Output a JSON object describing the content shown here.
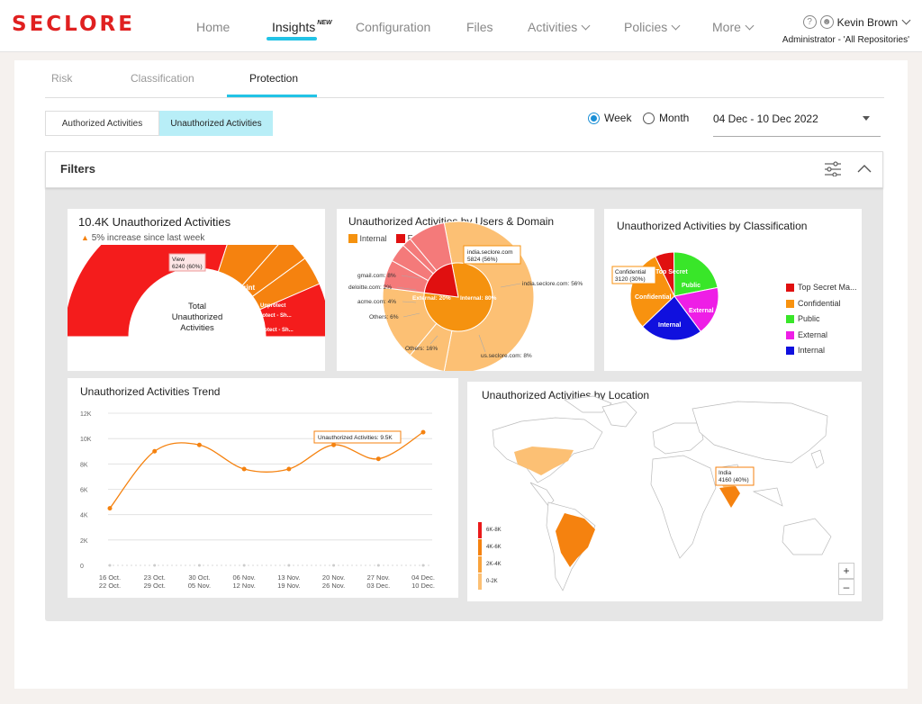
{
  "brand": {
    "logo": "SECLORE"
  },
  "nav": {
    "home": "Home",
    "insights": "Insights",
    "insights_badge": "NEW",
    "configuration": "Configuration",
    "files": "Files",
    "activities": "Activities",
    "policies": "Policies",
    "more": "More"
  },
  "user": {
    "help": "?",
    "name": "Kevin Brown",
    "role": "Administrator - 'All Repositories'"
  },
  "subtabs": {
    "risk": "Risk",
    "classification": "Classification",
    "protection": "Protection"
  },
  "activity_toggle": {
    "authorized": "Authorized Activities",
    "unauthorized": "Unauthorized Activities"
  },
  "period": {
    "week": "Week",
    "month": "Month",
    "selected": "Week",
    "date_range": "04 Dec - 10 Dec 2022"
  },
  "filters": {
    "label": "Filters"
  },
  "colors": {
    "accent": "#22c3e6",
    "red": "#f41c1c",
    "orange": "#f5820f",
    "light_orange": "#fcc074"
  },
  "card_total": {
    "title": "10.4K Unauthorized Activities",
    "trend": "5% increase since last week",
    "center_label": [
      "Total",
      "Unauthorized",
      "Activities"
    ],
    "slice_labels": [
      "View",
      "Print",
      "Unprotect",
      "Protect - Sh...",
      "Protect - Sh..."
    ],
    "tooltip": [
      "View",
      "6240 (60%)"
    ]
  },
  "card_domain": {
    "title": "Unauthorized Activities by Users & Domain",
    "legend": [
      "Internal",
      "External"
    ],
    "outer_labels": [
      "gmail.com: 8%",
      "deloitte.com: 2%",
      "acme.com: 4%",
      "Others: 6%",
      "Others: 16%",
      "us.seclore.com: 8%",
      "india.seclore.com: 56%"
    ],
    "inner_labels": [
      "External: 20%",
      "Internal: 80%"
    ],
    "tooltip": [
      "india.seclore.com",
      "5824 (56%)"
    ]
  },
  "card_classification": {
    "title": "Unauthorized Activities by Classification",
    "slice_labels": [
      "Top Secret",
      "Public",
      "External",
      "Internal",
      "Confidential"
    ],
    "legend": [
      "Top Secret Ma...",
      "Confidential",
      "Public",
      "External",
      "Internal"
    ],
    "legend_colors": [
      "#e01010",
      "#f8920f",
      "#39e629",
      "#ee1ee6",
      "#1010de"
    ],
    "tooltip": [
      "Confidential",
      "3120 (30%)"
    ]
  },
  "card_trend": {
    "title": "Unauthorized Activities Trend",
    "tooltip": "Unauthorized Activities: 9.5K"
  },
  "card_location": {
    "title": "Unauthorized Activities by Location",
    "tooltip": [
      "India",
      "4160 (40%)"
    ],
    "legend": [
      "6K-8K",
      "4K-6K",
      "2K-4K",
      "0-2K"
    ],
    "legend_colors": [
      "#ea1a1a",
      "#f5820f",
      "#f9a33c",
      "#fcc074"
    ],
    "zoom_in": "+",
    "zoom_out": "–"
  },
  "chart_data": [
    {
      "type": "pie",
      "title": "10.4K Unauthorized Activities",
      "categories": [
        "View",
        "Print",
        "Unprotect",
        "Protect - Sh...",
        "Protect - Sh..."
      ],
      "values": [
        60,
        13,
        7,
        7,
        13
      ]
    },
    {
      "type": "pie",
      "title": "Unauthorized Activities by Users & Domain",
      "categories": [
        "india.seclore.com",
        "us.seclore.com",
        "Others",
        "Others",
        "acme.com",
        "deloitte.com",
        "gmail.com"
      ],
      "values": [
        56,
        8,
        16,
        6,
        4,
        2,
        8
      ]
    },
    {
      "type": "pie",
      "title": "Unauthorized Activities by Classification",
      "categories": [
        "Top Secret",
        "Public",
        "External",
        "Internal",
        "Confidential"
      ],
      "values": [
        7,
        22,
        18,
        23,
        30
      ]
    },
    {
      "type": "line",
      "title": "Unauthorized Activities Trend",
      "x": [
        "16 Oct. 22 Oct.",
        "23 Oct. 29 Oct.",
        "30 Oct. 05 Nov.",
        "06 Nov. 12 Nov.",
        "13 Nov. 19 Nov.",
        "20 Nov. 26 Nov.",
        "27 Nov. 03 Dec.",
        "04 Dec. 10 Dec."
      ],
      "x_top": [
        "16 Oct.",
        "23 Oct.",
        "30 Oct.",
        "06 Nov.",
        "13 Nov.",
        "20 Nov.",
        "27 Nov.",
        "04 Dec."
      ],
      "x_bottom": [
        "22 Oct.",
        "29 Oct.",
        "05 Nov.",
        "12 Nov.",
        "19 Nov.",
        "26 Nov.",
        "03 Dec.",
        "10 Dec."
      ],
      "series": [
        {
          "values": [
            4500,
            9000,
            9500,
            7600,
            7600,
            9500,
            8400,
            10500
          ]
        }
      ],
      "y_ticks": [
        "0",
        "2K",
        "4K",
        "6K",
        "8K",
        "10K",
        "12K"
      ],
      "ylim": [
        0,
        12000
      ],
      "grid": true
    }
  ]
}
